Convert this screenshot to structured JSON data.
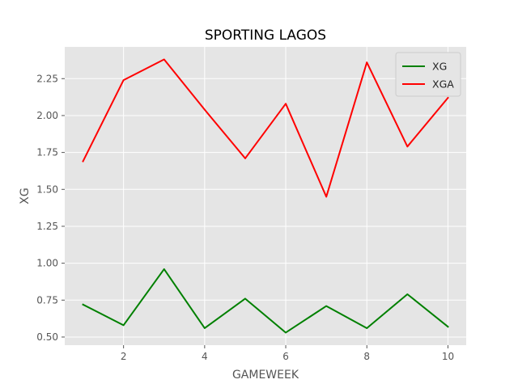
{
  "chart_data": {
    "type": "line",
    "title": "SPORTING LAGOS",
    "xlabel": "GAMEWEEK",
    "ylabel": "XG",
    "x": [
      1,
      2,
      3,
      4,
      5,
      6,
      7,
      8,
      9,
      10
    ],
    "xlim": [
      0.55,
      10.45
    ],
    "ylim": [
      0.445,
      2.465
    ],
    "xticks": [
      2,
      4,
      6,
      8,
      10
    ],
    "yticks": [
      0.5,
      0.75,
      1.0,
      1.25,
      1.5,
      1.75,
      2.0,
      2.25
    ],
    "ytick_labels": [
      "0.50",
      "0.75",
      "1.00",
      "1.25",
      "1.50",
      "1.75",
      "2.00",
      "2.25"
    ],
    "grid": true,
    "legend_position": "top-right",
    "series": [
      {
        "name": "XG",
        "color": "#008000",
        "values": [
          0.72,
          0.58,
          0.96,
          0.56,
          0.76,
          0.53,
          0.71,
          0.56,
          0.79,
          0.57
        ]
      },
      {
        "name": "XGA",
        "color": "#ff0000",
        "values": [
          1.69,
          2.24,
          2.38,
          2.04,
          1.71,
          2.08,
          1.45,
          2.36,
          1.79,
          2.12
        ]
      }
    ]
  }
}
